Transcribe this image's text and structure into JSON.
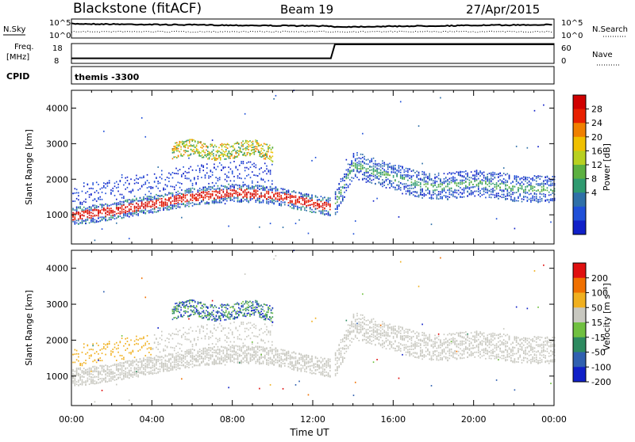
{
  "header": {
    "title": "Blackstone (fitACF)",
    "beam": "Beam 19",
    "date": "27/Apr/2015"
  },
  "strip_labels": {
    "nsky": "N.Sky",
    "nsearch": "N.Search",
    "freq": "Freq.",
    "mhz": "[MHz]",
    "nave": "Nave",
    "cpid": "CPID",
    "cpid_value": "themis -3300"
  },
  "strip_ticks": {
    "left_top": [
      "10^5",
      "10^0"
    ],
    "right_top": [
      "10^5",
      "10^0"
    ],
    "left_freq": [
      "18",
      "8"
    ],
    "right_nave": [
      "60",
      "0"
    ]
  },
  "panels": {
    "ylabel": "Slant Range [km]",
    "xlabel": "Time UT",
    "x_ticks": [
      "00:00",
      "04:00",
      "08:00",
      "12:00",
      "16:00",
      "20:00",
      "00:00"
    ],
    "y_ticks": [
      "1000",
      "2000",
      "3000",
      "4000"
    ]
  },
  "colorbars": {
    "power_label": "Power [dB]",
    "power_ticks": [
      "28",
      "24",
      "20",
      "16",
      "12",
      "8",
      "4"
    ],
    "power_colors": [
      "#1020c8",
      "#2050d8",
      "#2f70a8",
      "#2f9a70",
      "#5cb040",
      "#b8d020",
      "#f0c000",
      "#f08000",
      "#e82000",
      "#d00000"
    ],
    "velocity_label": "Velocity [m s⁻¹]",
    "velocity_ticks": [
      "200",
      "100",
      "50",
      "15",
      "-15",
      "-50",
      "-100",
      "-200"
    ],
    "velocity_colors": [
      "#1020c8",
      "#3060b0",
      "#2d8a60",
      "#70c040",
      "#c8c8c0",
      "#f0b020",
      "#f07000",
      "#e01010"
    ]
  },
  "chart_data": [
    {
      "type": "line",
      "title": "N.Sky",
      "x": [
        0,
        24
      ],
      "xlim": [
        0,
        24
      ],
      "note": "sky noise and search noise time series (log scale 10^0-10^5)"
    },
    {
      "type": "line",
      "title": "Freq.",
      "x": [
        0,
        12.9,
        13.1,
        24
      ],
      "values": [
        10,
        10,
        18,
        18
      ],
      "ylim": [
        8,
        18
      ]
    },
    {
      "type": "heatmap",
      "title": "Power [dB]",
      "xlabel": "Time UT",
      "ylabel": "Slant Range [km]",
      "xlim": [
        0,
        24
      ],
      "ylim": [
        180,
        4500
      ],
      "series": [
        {
          "name": "main_band",
          "x": [
            0,
            2,
            4,
            6,
            8,
            10,
            12,
            13,
            14,
            16,
            18,
            20,
            22,
            24
          ],
          "values": [
            950,
            1100,
            1300,
            1500,
            1620,
            1550,
            1300,
            1200,
            2400,
            2050,
            1750,
            1900,
            1750,
            1700
          ]
        },
        {
          "name": "upper_cluster",
          "x": [
            5,
            6,
            7,
            8,
            9,
            10
          ],
          "values": [
            2800,
            2900,
            2750,
            2800,
            2900,
            2700
          ]
        }
      ]
    },
    {
      "type": "heatmap",
      "title": "Velocity [m s⁻¹]",
      "xlabel": "Time UT",
      "ylabel": "Slant Range [km]",
      "xlim": [
        0,
        24
      ],
      "ylim": [
        180,
        4500
      ],
      "series": [
        {
          "name": "main_band",
          "x": [
            0,
            2,
            4,
            6,
            8,
            10,
            12,
            13,
            14,
            16,
            18,
            20,
            22,
            24
          ],
          "values": [
            950,
            1100,
            1300,
            1500,
            1620,
            1550,
            1300,
            1200,
            2400,
            2050,
            1750,
            1900,
            1750,
            1700
          ]
        },
        {
          "name": "upper_cluster",
          "x": [
            5,
            6,
            7,
            8,
            9,
            10
          ],
          "values": [
            2800,
            2900,
            2750,
            2800,
            2900,
            2700
          ]
        }
      ]
    }
  ]
}
